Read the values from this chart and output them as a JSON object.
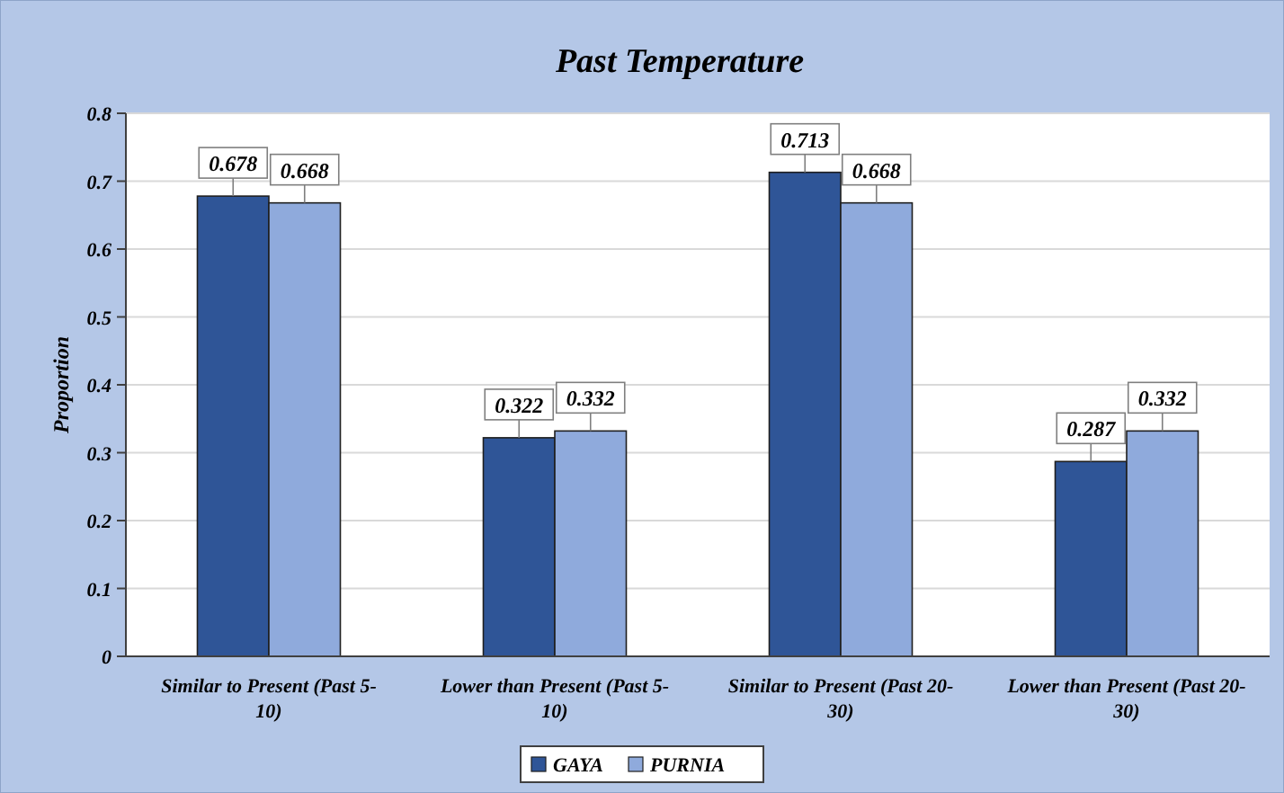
{
  "chart_data": {
    "type": "bar",
    "title": "Past Temperature",
    "ylabel": "Proportion",
    "categories": [
      "Similar to Present (Past 5-10)",
      "Lower than Present (Past 5-10)",
      "Similar to Present (Past 20-30)",
      "Lower than Present (Past 20-30)"
    ],
    "series": [
      {
        "name": "GAYA",
        "color": "#2f5597",
        "values": [
          0.678,
          0.322,
          0.713,
          0.287
        ]
      },
      {
        "name": "PURNIA",
        "color": "#8faadc",
        "values": [
          0.668,
          0.332,
          0.668,
          0.332
        ]
      }
    ],
    "ylim": [
      0,
      0.8
    ],
    "yticks": [
      {
        "value": 0,
        "label": "0"
      },
      0.1,
      0.2,
      0.3,
      0.4,
      0.5,
      0.6,
      0.7,
      0.8
    ],
    "grid": "y",
    "legend": "bottom",
    "data_labels": true
  }
}
